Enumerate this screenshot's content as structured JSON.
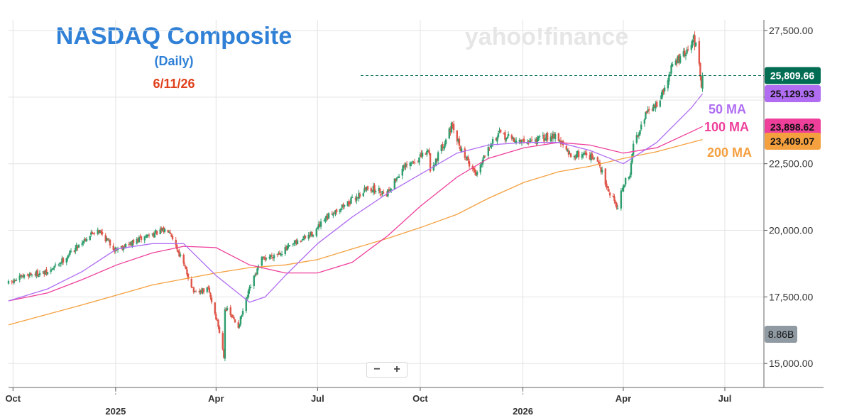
{
  "title": "NASDAQ Composite",
  "subtitle": "(Daily)",
  "date": "6/11/26",
  "watermark": "yahoo!finance",
  "zoom": {
    "minus": "−",
    "plus": "+"
  },
  "colors": {
    "title": "#2f80d6",
    "date": "#e0401c",
    "up_candle": "#2e9e6e",
    "down_candle": "#e0564a",
    "ma50": "#b06df2",
    "ma100": "#ee3f9b",
    "ma200": "#f5a03f",
    "last_price_badge": "#036d54",
    "volume_badge": "#8f9aa3"
  },
  "chart_data": {
    "type": "candlestick",
    "y_ticks": [
      "27,500.00",
      "25,000.00",
      "22,500.00",
      "20,000.00",
      "17,500.00",
      "15,000.00"
    ],
    "y_tick_values": [
      27500,
      25000,
      22500,
      20000,
      17500,
      15000
    ],
    "ylim": [
      14100,
      27900
    ],
    "x_ticks": [
      {
        "label": "Oct",
        "date": "2024-10-01",
        "sub": ""
      },
      {
        "label": "",
        "date": "2025-01-01",
        "sub": "2025"
      },
      {
        "label": "Apr",
        "date": "2025-04-01",
        "sub": ""
      },
      {
        "label": "Jul",
        "date": "2025-07-01",
        "sub": ""
      },
      {
        "label": "Oct",
        "date": "2025-10-01",
        "sub": ""
      },
      {
        "label": "",
        "date": "2026-01-01",
        "sub": "2026"
      },
      {
        "label": "Apr",
        "date": "2026-04-01",
        "sub": ""
      },
      {
        "label": "Jul",
        "date": "2026-07-01",
        "sub": ""
      }
    ],
    "xlim": [
      "2024-09-27",
      "2026-08-05"
    ],
    "last_price": 25809.66,
    "last_price_label": "25,809.66",
    "ma_badges": [
      {
        "name": "50 MA",
        "value": 25129.93,
        "label": "25,129.93"
      },
      {
        "name": "100 MA",
        "value": 23898.62,
        "label": "23,898.62"
      },
      {
        "name": "200 MA",
        "value": 23409.07,
        "label": "23,409.07"
      }
    ],
    "volume_label": "8.86B",
    "close_keypoints": [
      [
        "2024-09-27",
        18000
      ],
      [
        "2024-10-15",
        18350
      ],
      [
        "2024-11-01",
        18400
      ],
      [
        "2024-11-15",
        18900
      ],
      [
        "2024-12-05",
        19700
      ],
      [
        "2024-12-16",
        20050
      ],
      [
        "2024-12-31",
        19300
      ],
      [
        "2025-01-15",
        19500
      ],
      [
        "2025-01-29",
        19800
      ],
      [
        "2025-02-18",
        20050
      ],
      [
        "2025-03-03",
        18700
      ],
      [
        "2025-03-13",
        17600
      ],
      [
        "2025-03-25",
        17800
      ],
      [
        "2025-04-03",
        16400
      ],
      [
        "2025-04-08",
        15300
      ],
      [
        "2025-04-09",
        17100
      ],
      [
        "2025-04-21",
        16400
      ],
      [
        "2025-05-02",
        17900
      ],
      [
        "2025-05-12",
        18900
      ],
      [
        "2025-05-30",
        19200
      ],
      [
        "2025-06-27",
        19900
      ],
      [
        "2025-07-15",
        20700
      ],
      [
        "2025-07-31",
        21100
      ],
      [
        "2025-08-15",
        21600
      ],
      [
        "2025-09-01",
        21400
      ],
      [
        "2025-09-15",
        22300
      ],
      [
        "2025-09-30",
        22700
      ],
      [
        "2025-10-09",
        23000
      ],
      [
        "2025-10-10",
        22200
      ],
      [
        "2025-10-29",
        23900
      ],
      [
        "2025-11-07",
        23000
      ],
      [
        "2025-11-20",
        22100
      ],
      [
        "2025-12-01",
        23200
      ],
      [
        "2025-12-11",
        23600
      ],
      [
        "2025-12-31",
        23300
      ],
      [
        "2026-01-15",
        23400
      ],
      [
        "2026-01-30",
        23600
      ],
      [
        "2026-02-12",
        22800
      ],
      [
        "2026-02-27",
        22900
      ],
      [
        "2026-03-10",
        22500
      ],
      [
        "2026-03-20",
        21400
      ],
      [
        "2026-03-27",
        20900
      ],
      [
        "2026-04-01",
        21700
      ],
      [
        "2026-04-07",
        22100
      ],
      [
        "2026-04-10",
        23200
      ],
      [
        "2026-04-20",
        24300
      ],
      [
        "2026-04-30",
        24700
      ],
      [
        "2026-05-08",
        25300
      ],
      [
        "2026-05-15",
        26200
      ],
      [
        "2026-05-22",
        26500
      ],
      [
        "2026-05-29",
        26700
      ],
      [
        "2026-06-03",
        27200
      ],
      [
        "2026-06-05",
        26900
      ],
      [
        "2026-06-08",
        26200
      ],
      [
        "2026-06-10",
        25500
      ],
      [
        "2026-06-11",
        25809.66
      ]
    ],
    "ma50_keypoints": [
      [
        "2024-09-27",
        17350
      ],
      [
        "2024-11-01",
        17800
      ],
      [
        "2024-12-02",
        18450
      ],
      [
        "2025-01-02",
        19300
      ],
      [
        "2025-02-03",
        19500
      ],
      [
        "2025-03-03",
        19500
      ],
      [
        "2025-04-01",
        18300
      ],
      [
        "2025-05-01",
        17300
      ],
      [
        "2025-05-15",
        17500
      ],
      [
        "2025-06-02",
        18300
      ],
      [
        "2025-07-01",
        19500
      ],
      [
        "2025-08-01",
        20500
      ],
      [
        "2025-09-02",
        21400
      ],
      [
        "2025-10-01",
        22100
      ],
      [
        "2025-11-03",
        22900
      ],
      [
        "2025-12-01",
        23200
      ],
      [
        "2026-01-02",
        23300
      ],
      [
        "2026-02-02",
        23300
      ],
      [
        "2026-03-02",
        23000
      ],
      [
        "2026-04-01",
        22500
      ],
      [
        "2026-05-01",
        23300
      ],
      [
        "2026-06-01",
        24600
      ],
      [
        "2026-06-11",
        25129.93
      ]
    ],
    "ma100_keypoints": [
      [
        "2024-09-27",
        17350
      ],
      [
        "2024-11-01",
        17650
      ],
      [
        "2024-12-02",
        18150
      ],
      [
        "2025-01-02",
        18700
      ],
      [
        "2025-02-03",
        19150
      ],
      [
        "2025-03-03",
        19400
      ],
      [
        "2025-04-01",
        19350
      ],
      [
        "2025-05-01",
        18700
      ],
      [
        "2025-06-02",
        18400
      ],
      [
        "2025-07-01",
        18400
      ],
      [
        "2025-08-01",
        18800
      ],
      [
        "2025-09-02",
        19800
      ],
      [
        "2025-10-01",
        20900
      ],
      [
        "2025-11-03",
        22000
      ],
      [
        "2025-12-01",
        22700
      ],
      [
        "2026-01-02",
        23100
      ],
      [
        "2026-02-02",
        23300
      ],
      [
        "2026-03-02",
        23200
      ],
      [
        "2026-04-01",
        22900
      ],
      [
        "2026-05-01",
        23100
      ],
      [
        "2026-06-01",
        23700
      ],
      [
        "2026-06-11",
        23898.62
      ]
    ],
    "ma200_keypoints": [
      [
        "2024-09-27",
        16450
      ],
      [
        "2024-12-02",
        17200
      ],
      [
        "2025-02-03",
        17950
      ],
      [
        "2025-04-01",
        18400
      ],
      [
        "2025-05-01",
        18600
      ],
      [
        "2025-06-02",
        18700
      ],
      [
        "2025-07-01",
        18900
      ],
      [
        "2025-08-01",
        19300
      ],
      [
        "2025-09-02",
        19700
      ],
      [
        "2025-10-01",
        20100
      ],
      [
        "2025-11-03",
        20600
      ],
      [
        "2025-12-01",
        21200
      ],
      [
        "2026-01-02",
        21800
      ],
      [
        "2026-02-02",
        22200
      ],
      [
        "2026-03-02",
        22400
      ],
      [
        "2026-04-01",
        22700
      ],
      [
        "2026-05-01",
        22950
      ],
      [
        "2026-06-01",
        23300
      ],
      [
        "2026-06-11",
        23409.07
      ]
    ]
  }
}
